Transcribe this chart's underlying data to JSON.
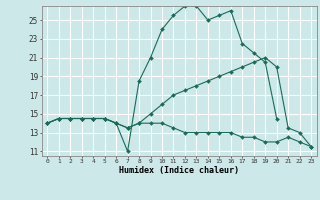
{
  "xlabel": "Humidex (Indice chaleur)",
  "bg_color": "#cce8e8",
  "line_color": "#1a6b5a",
  "grid_color": "#ffffff",
  "xlim": [
    -0.5,
    23.5
  ],
  "ylim": [
    10.5,
    26.5
  ],
  "xticks": [
    0,
    1,
    2,
    3,
    4,
    5,
    6,
    7,
    8,
    9,
    10,
    11,
    12,
    13,
    14,
    15,
    16,
    17,
    18,
    19,
    20,
    21,
    22,
    23
  ],
  "yticks": [
    11,
    13,
    15,
    17,
    19,
    21,
    23,
    25
  ],
  "line1_x": [
    0,
    1,
    2,
    3,
    4,
    5,
    6,
    7,
    8,
    9,
    10,
    11,
    12,
    13,
    14,
    15,
    16,
    17,
    18,
    19,
    20,
    21,
    22,
    23
  ],
  "line1_y": [
    14,
    14.5,
    14.5,
    14.5,
    14.5,
    14.5,
    14,
    13.5,
    14,
    14,
    14,
    13.5,
    13,
    13,
    13,
    13,
    13,
    12.5,
    12.5,
    12,
    12,
    12.5,
    12,
    11.5
  ],
  "line2_x": [
    0,
    1,
    2,
    3,
    4,
    5,
    6,
    7,
    8,
    9,
    10,
    11,
    12,
    13,
    14,
    15,
    16,
    17,
    18,
    19,
    20
  ],
  "line2_y": [
    14,
    14.5,
    14.5,
    14.5,
    14.5,
    14.5,
    14,
    11,
    18.5,
    21,
    24,
    25.5,
    26.5,
    26.5,
    25,
    25.5,
    26,
    22.5,
    21.5,
    20.5,
    14.5
  ],
  "line3_x": [
    0,
    1,
    2,
    3,
    4,
    5,
    6,
    7,
    8,
    9,
    10,
    11,
    12,
    13,
    14,
    15,
    16,
    17,
    18,
    19,
    20,
    21,
    22,
    23
  ],
  "line3_y": [
    14,
    14.5,
    14.5,
    14.5,
    14.5,
    14.5,
    14,
    13.5,
    14,
    15,
    16,
    17,
    17.5,
    18,
    18.5,
    19,
    19.5,
    20,
    20.5,
    21,
    20,
    13.5,
    13,
    11.5
  ]
}
